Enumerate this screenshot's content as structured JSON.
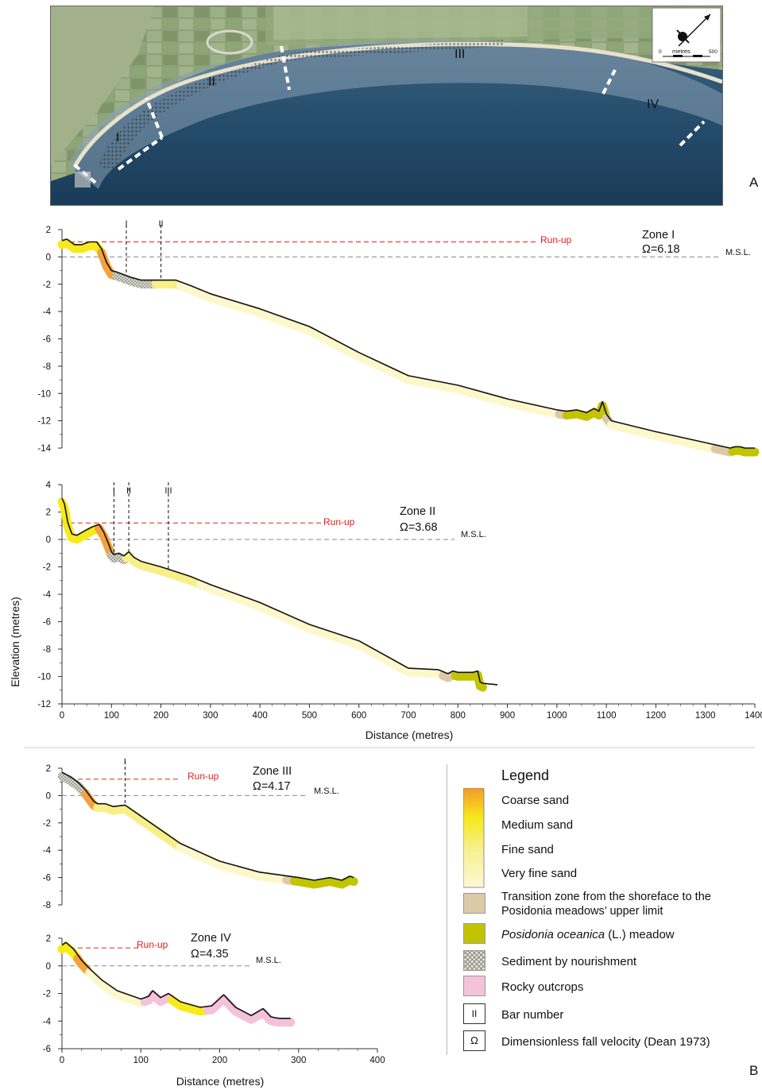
{
  "figure": {
    "panel_a": "A",
    "panel_b": "B",
    "map": {
      "zones": [
        "I",
        "II",
        "III",
        "IV"
      ],
      "scale": {
        "label": "metres",
        "start": "0",
        "end": "500"
      }
    }
  },
  "colors": {
    "coarse_sand": "#f4a23c",
    "medium_sand": "#f7ea1a",
    "fine_sand": "#f7ef8a",
    "very_fine_sand": "#fdf7cc",
    "transition": "#dccaa6",
    "posidonia": "#c2c400",
    "nourishment": "#c9c9b0",
    "rocky": "#f4c2d9",
    "runup_line": "#e0201c",
    "msl_line": "#888888"
  },
  "chart_data": [
    {
      "type": "line",
      "title": "Zone I",
      "subtitle": "Ω=6.18",
      "xlabel": "",
      "ylabel": "",
      "xlim": [
        0,
        1400
      ],
      "ylim": [
        -14,
        2
      ],
      "yticks": [
        "2",
        "0",
        "-2",
        "-4",
        "-6",
        "-8",
        "-10",
        "-12",
        "-14"
      ],
      "runup_label": "Run-up",
      "runup_elevation": 1.1,
      "runup_extent": 960,
      "msl_label": "M.S.L.",
      "bars": [
        {
          "label": "I",
          "x": 130
        },
        {
          "label": "II",
          "x": 200
        }
      ],
      "profile": {
        "x": [
          0,
          10,
          25,
          40,
          55,
          70,
          80,
          90,
          100,
          110,
          125,
          140,
          160,
          180,
          200,
          230,
          260,
          300,
          400,
          500,
          600,
          700,
          800,
          900,
          1000,
          1020,
          1040,
          1060,
          1075,
          1085,
          1092,
          1100,
          1110,
          1200,
          1300,
          1350,
          1360,
          1370,
          1380,
          1400
        ],
        "y": [
          1.2,
          1.3,
          0.9,
          0.9,
          1.1,
          1.1,
          0.6,
          -0.4,
          -1.0,
          -1.1,
          -1.3,
          -1.5,
          -1.7,
          -1.7,
          -1.7,
          -1.7,
          -2.1,
          -2.7,
          -3.8,
          -5.1,
          -7.0,
          -8.7,
          -9.4,
          -10.4,
          -11.2,
          -11.3,
          -11.2,
          -11.4,
          -11.1,
          -11.3,
          -10.6,
          -11.5,
          -12.0,
          -12.8,
          -13.6,
          -14.0,
          -13.9,
          -13.9,
          -14.0,
          -14.0
        ]
      },
      "segments": [
        {
          "from": 0,
          "to": 80,
          "type": "medium_sand"
        },
        {
          "from": 80,
          "to": 110,
          "type": "coarse_sand"
        },
        {
          "from": 110,
          "to": 190,
          "type": "nourishment"
        },
        {
          "from": 190,
          "to": 240,
          "type": "fine_sand"
        },
        {
          "from": 240,
          "to": 1005,
          "type": "very_fine_sand"
        },
        {
          "from": 1005,
          "to": 1020,
          "type": "transition"
        },
        {
          "from": 1020,
          "to": 1100,
          "type": "posidonia"
        },
        {
          "from": 1100,
          "to": 1110,
          "type": "transition"
        },
        {
          "from": 1110,
          "to": 1320,
          "type": "very_fine_sand"
        },
        {
          "from": 1320,
          "to": 1355,
          "type": "transition"
        },
        {
          "from": 1355,
          "to": 1400,
          "type": "posidonia"
        }
      ]
    },
    {
      "type": "line",
      "title": "Zone II",
      "subtitle": "Ω=3.68",
      "xlabel": "Distance (metres)",
      "ylabel": "Elevation (metres)",
      "xlim": [
        0,
        1400
      ],
      "ylim": [
        -12,
        4
      ],
      "yticks": [
        "4",
        "2",
        "0",
        "-2",
        "-4",
        "-6",
        "-8",
        "-10",
        "-12"
      ],
      "xticks": [
        "0",
        "100",
        "200",
        "300",
        "400",
        "500",
        "600",
        "700",
        "800",
        "900",
        "1000",
        "1100",
        "1200",
        "1300",
        "1400"
      ],
      "runup_label": "Run-up",
      "runup_elevation": 1.2,
      "runup_extent": 530,
      "msl_label": "M.S.L.",
      "bars": [
        {
          "label": "I",
          "x": 105
        },
        {
          "label": "II",
          "x": 135
        },
        {
          "label": "III",
          "x": 215
        }
      ],
      "profile": {
        "x": [
          0,
          5,
          12,
          20,
          30,
          45,
          60,
          75,
          85,
          95,
          100,
          105,
          115,
          125,
          135,
          145,
          160,
          200,
          260,
          300,
          400,
          500,
          600,
          700,
          760,
          780,
          790,
          800,
          830,
          840,
          845,
          850,
          880
        ],
        "y": [
          3.0,
          2.6,
          1.2,
          0.4,
          0.3,
          0.6,
          0.9,
          1.1,
          0.5,
          -0.4,
          -0.9,
          -1.1,
          -1.0,
          -1.2,
          -0.9,
          -1.3,
          -1.6,
          -2.0,
          -2.7,
          -3.3,
          -4.6,
          -6.2,
          -7.4,
          -9.4,
          -9.5,
          -9.8,
          -9.6,
          -9.7,
          -9.7,
          -9.6,
          -10.4,
          -10.5,
          -10.6
        ]
      },
      "segments": [
        {
          "from": 0,
          "to": 75,
          "type": "medium_sand"
        },
        {
          "from": 75,
          "to": 100,
          "type": "coarse_sand"
        },
        {
          "from": 100,
          "to": 130,
          "type": "nourishment"
        },
        {
          "from": 130,
          "to": 280,
          "type": "fine_sand"
        },
        {
          "from": 280,
          "to": 770,
          "type": "very_fine_sand"
        },
        {
          "from": 770,
          "to": 795,
          "type": "transition"
        },
        {
          "from": 795,
          "to": 850,
          "type": "posidonia"
        }
      ]
    },
    {
      "type": "line",
      "title": "Zone III",
      "subtitle": "Ω=4.17",
      "xlabel": "",
      "ylabel": "",
      "xlim": [
        0,
        400
      ],
      "ylim": [
        -8,
        2
      ],
      "yticks": [
        "2",
        "0",
        "-2",
        "-4",
        "-6",
        "-8"
      ],
      "runup_label": "Run-up",
      "runup_elevation": 1.2,
      "runup_extent": 150,
      "msl_label": "M.S.L.",
      "bars": [
        {
          "label": "I",
          "x": 80
        }
      ],
      "profile": {
        "x": [
          0,
          10,
          20,
          30,
          40,
          45,
          55,
          65,
          80,
          100,
          150,
          200,
          250,
          300,
          320,
          340,
          355,
          365,
          370
        ],
        "y": [
          1.7,
          1.4,
          1.0,
          0.4,
          -0.4,
          -0.6,
          -0.6,
          -0.8,
          -0.7,
          -1.5,
          -3.5,
          -4.8,
          -5.6,
          -6.0,
          -6.2,
          -6.0,
          -6.2,
          -5.9,
          -6.0
        ]
      },
      "segments": [
        {
          "from": 0,
          "to": 30,
          "type": "nourishment"
        },
        {
          "from": 30,
          "to": 45,
          "type": "coarse_sand"
        },
        {
          "from": 45,
          "to": 150,
          "type": "fine_sand"
        },
        {
          "from": 150,
          "to": 285,
          "type": "very_fine_sand"
        },
        {
          "from": 285,
          "to": 295,
          "type": "transition"
        },
        {
          "from": 295,
          "to": 370,
          "type": "posidonia"
        }
      ]
    },
    {
      "type": "line",
      "title": "Zone IV",
      "subtitle": "Ω=4.35",
      "xlabel": "Distance (metres)",
      "ylabel": "",
      "xlim": [
        0,
        400
      ],
      "ylim": [
        -6,
        2
      ],
      "yticks": [
        "2",
        "0",
        "-2",
        "-4",
        "-6"
      ],
      "xticks": [
        "0",
        "100",
        "200",
        "300",
        "400"
      ],
      "runup_label": "Run-up",
      "runup_elevation": 1.3,
      "runup_extent": 100,
      "msl_label": "M.S.L.",
      "bars": [],
      "profile": {
        "x": [
          0,
          5,
          15,
          25,
          35,
          50,
          70,
          100,
          110,
          115,
          125,
          135,
          150,
          175,
          190,
          205,
          220,
          240,
          255,
          265,
          275,
          290
        ],
        "y": [
          1.5,
          1.7,
          1.2,
          0.4,
          -0.2,
          -1.0,
          -1.8,
          -2.4,
          -2.2,
          -1.8,
          -2.3,
          -2.0,
          -2.6,
          -3.0,
          -2.9,
          -2.1,
          -3.0,
          -3.6,
          -3.1,
          -3.7,
          -3.8,
          -3.8
        ]
      },
      "segments": [
        {
          "from": 0,
          "to": 20,
          "type": "medium_sand"
        },
        {
          "from": 20,
          "to": 35,
          "type": "coarse_sand"
        },
        {
          "from": 35,
          "to": 105,
          "type": "very_fine_sand"
        },
        {
          "from": 105,
          "to": 140,
          "type": "rocky"
        },
        {
          "from": 140,
          "to": 185,
          "type": "medium_sand"
        },
        {
          "from": 185,
          "to": 290,
          "type": "rocky"
        }
      ]
    }
  ],
  "legend": {
    "title": "Legend",
    "items": [
      {
        "key": "coarse_sand",
        "label": "Coarse sand"
      },
      {
        "key": "medium_sand",
        "label": "Medium sand"
      },
      {
        "key": "fine_sand",
        "label": "Fine sand"
      },
      {
        "key": "very_fine_sand",
        "label": "Very fine sand"
      },
      {
        "key": "transition",
        "label_line1": "Transition zone from the shoreface to the",
        "label_line2": "Posidonia meadows’ upper limit"
      },
      {
        "key": "posidonia",
        "label_italic": "Posidonia oceanica",
        "label_rest": " (L.) meadow"
      },
      {
        "key": "nourishment",
        "label": "Sediment by nourishment"
      },
      {
        "key": "rocky",
        "label": "Rocky outcrops"
      },
      {
        "key": "bar_number",
        "symbol": "II",
        "label": "Bar number"
      },
      {
        "key": "omega",
        "symbol": "Ω",
        "label": "Dimensionless fall velocity (Dean 1973)"
      }
    ]
  }
}
